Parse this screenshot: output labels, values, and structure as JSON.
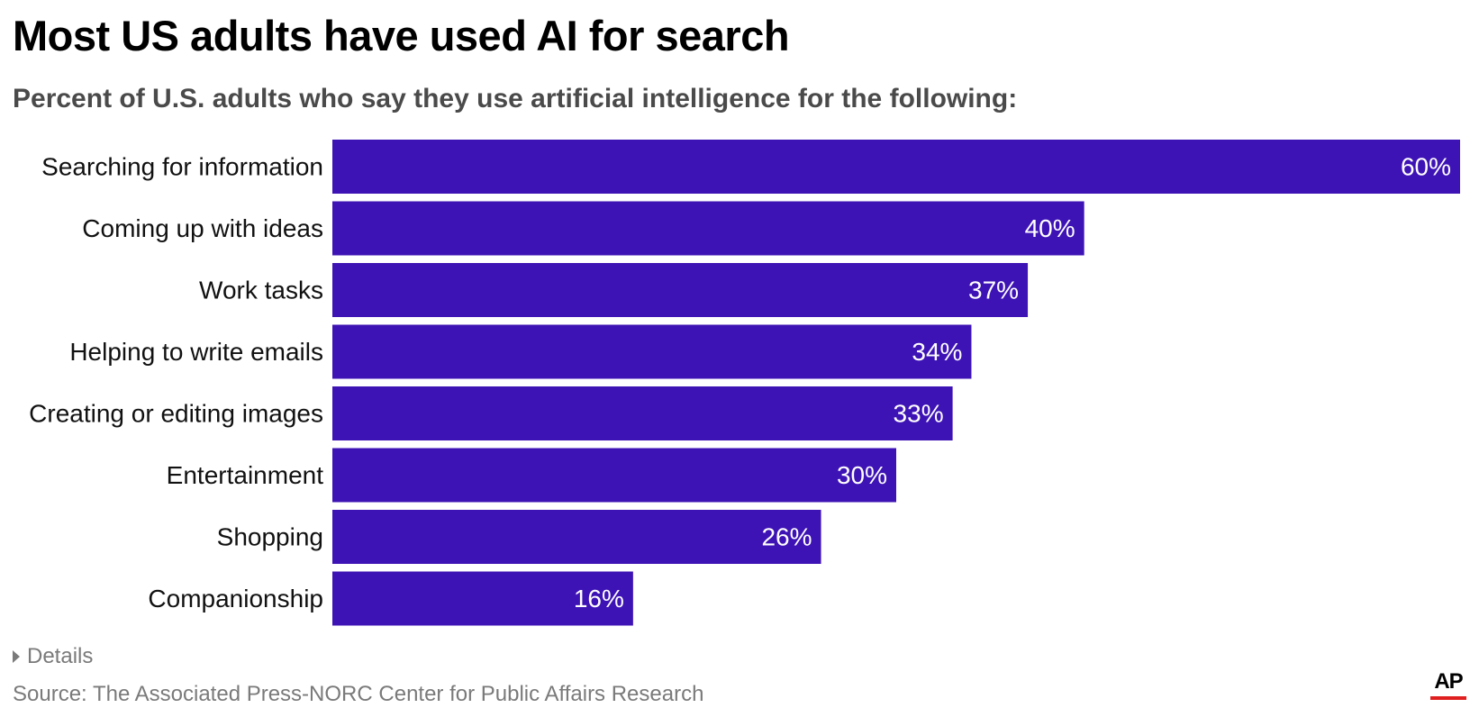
{
  "chart_data": {
    "type": "bar",
    "orientation": "horizontal",
    "title": "Most US adults have used AI for search",
    "subtitle": "Percent of U.S. adults who say they use artificial intelligence for the following:",
    "categories": [
      "Searching for information",
      "Coming up with ideas",
      "Work tasks",
      "Helping to write emails",
      "Creating or editing images",
      "Entertainment",
      "Shopping",
      "Companionship"
    ],
    "values": [
      60,
      40,
      37,
      34,
      33,
      30,
      26,
      16
    ],
    "value_labels": [
      "60%",
      "40%",
      "37%",
      "34%",
      "33%",
      "30%",
      "26%",
      "16%"
    ],
    "unit": "%",
    "xlim": [
      0,
      60
    ],
    "grid": false,
    "legend": "none",
    "bar_color": "#3e13b5"
  },
  "details_label": "Details",
  "source": "Source: The Associated Press-NORC Center for Public Affairs Research",
  "logo": {
    "text": "AP",
    "accent_color": "#e02020"
  },
  "icons": {
    "details_toggle": "caret-right-icon"
  }
}
